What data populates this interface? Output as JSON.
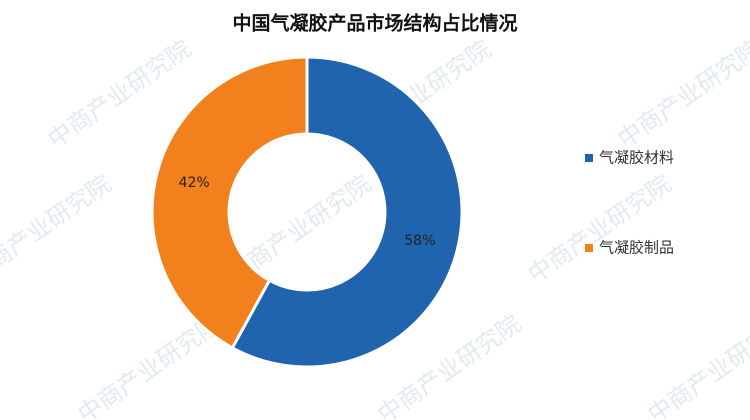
{
  "chart_data": {
    "type": "donut",
    "title": "中国气凝胶产品市场结构占比情况",
    "categories": [
      "气凝胶材料",
      "气凝胶制品"
    ],
    "values": [
      58,
      42
    ],
    "value_labels": [
      "58%",
      "42%"
    ],
    "colors": [
      "#1f64ad",
      "#f2801c"
    ],
    "legend": "right"
  },
  "watermark": "中商产业研究院"
}
